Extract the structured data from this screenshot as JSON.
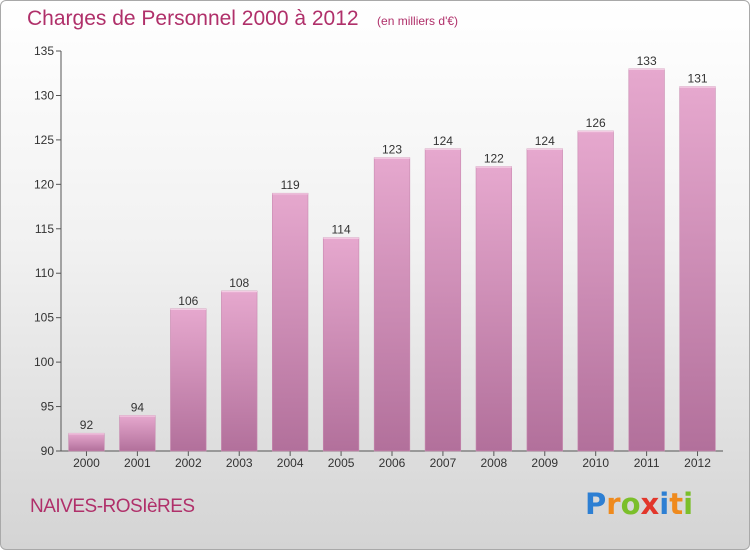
{
  "chart_data": {
    "type": "bar",
    "title": "Charges de Personnel 2000 à 2012",
    "subtitle": "(en milliers d'€)",
    "categories": [
      "2000",
      "2001",
      "2002",
      "2003",
      "2004",
      "2005",
      "2006",
      "2007",
      "2008",
      "2009",
      "2010",
      "2011",
      "2012"
    ],
    "values": [
      92,
      94,
      106,
      108,
      119,
      114,
      123,
      124,
      122,
      124,
      126,
      133,
      131
    ],
    "ylim": [
      90,
      135
    ],
    "yticks": [
      90,
      95,
      100,
      105,
      110,
      115,
      120,
      125,
      130,
      135
    ],
    "grid": false,
    "bar_color": "#d98fb8"
  },
  "location": "NAIVES-ROSIèRES",
  "brand": {
    "text": "Proxiti",
    "letters": [
      {
        "char": "P",
        "color": "#2d7fd3"
      },
      {
        "char": "r",
        "color": "#ef8a1d"
      },
      {
        "char": "o",
        "color": "#7bbf2a"
      },
      {
        "char": "x",
        "color": "#e2362b"
      },
      {
        "char": "i",
        "color": "#2d7fd3"
      },
      {
        "char": "t",
        "color": "#ef8a1d"
      },
      {
        "char": "i",
        "color": "#7bbf2a"
      }
    ]
  },
  "colors": {
    "accent": "#b0306a"
  }
}
